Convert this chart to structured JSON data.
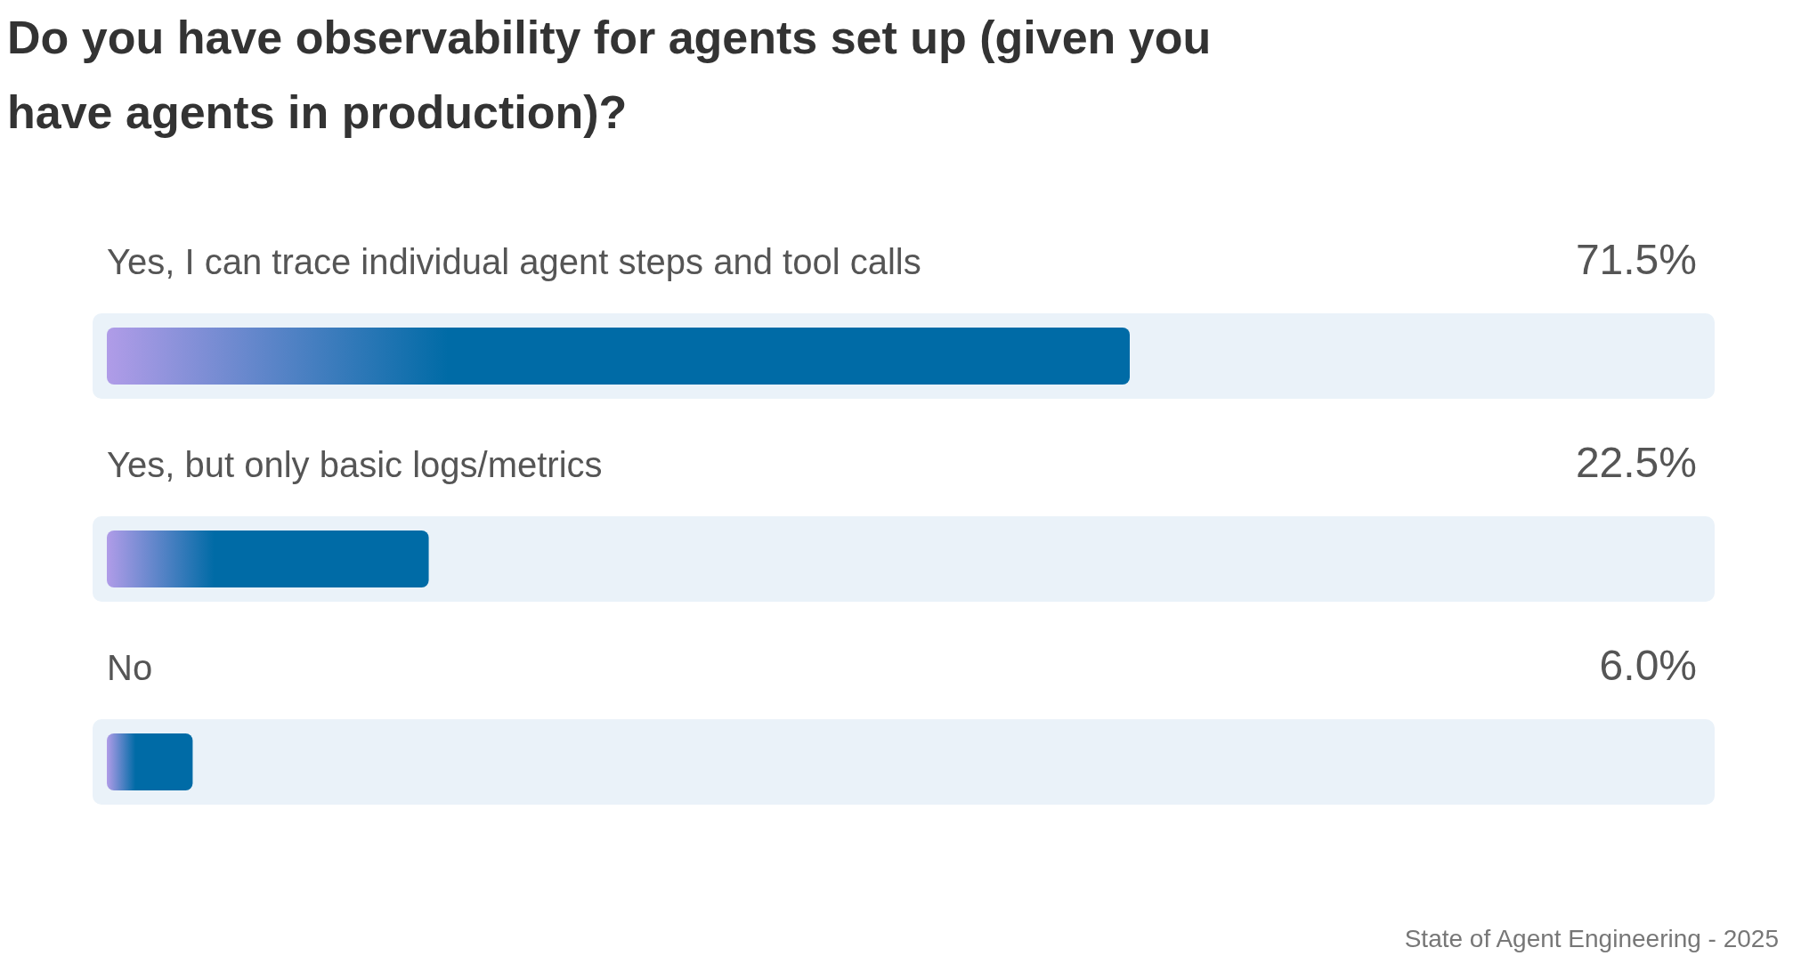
{
  "chart_data": {
    "type": "bar",
    "orientation": "horizontal",
    "title": "Do you have observability for agents set up (given you have agents in production)?",
    "categories": [
      "Yes, I can trace individual agent steps and tool calls",
      "Yes, but only basic logs/metrics",
      "No"
    ],
    "values": [
      71.5,
      22.5,
      6.0
    ],
    "value_labels": [
      "71.5%",
      "22.5%",
      "6.0%"
    ],
    "color": "#006ba6",
    "annotations": [
      "State of Agent Engineering - 2025"
    ]
  }
}
